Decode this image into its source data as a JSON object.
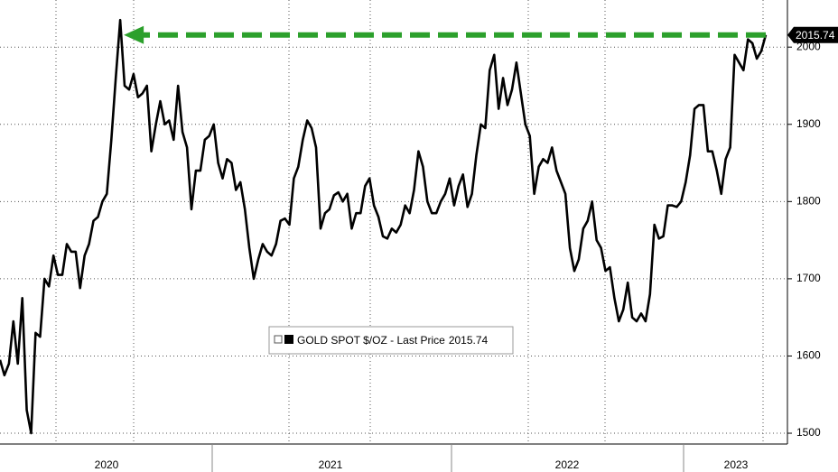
{
  "chart_data": {
    "type": "line",
    "x_labels": [
      "2020",
      "2021",
      "2022",
      "2023"
    ],
    "series": [
      {
        "name": "GOLD SPOT $/OZ - Last Price",
        "color": "#000000",
        "values": [
          1595,
          1575,
          1590,
          1645,
          1590,
          1675,
          1530,
          1500,
          1630,
          1625,
          1700,
          1690,
          1730,
          1705,
          1705,
          1745,
          1735,
          1735,
          1688,
          1730,
          1745,
          1775,
          1780,
          1800,
          1810,
          1880,
          1960,
          2035,
          1950,
          1945,
          1965,
          1935,
          1940,
          1950,
          1865,
          1900,
          1930,
          1900,
          1905,
          1880,
          1950,
          1890,
          1870,
          1790,
          1840,
          1840,
          1880,
          1885,
          1900,
          1850,
          1830,
          1855,
          1850,
          1815,
          1825,
          1790,
          1740,
          1700,
          1725,
          1745,
          1735,
          1730,
          1745,
          1775,
          1778,
          1770,
          1830,
          1845,
          1880,
          1905,
          1895,
          1870,
          1765,
          1785,
          1790,
          1808,
          1812,
          1800,
          1810,
          1765,
          1785,
          1785,
          1820,
          1830,
          1795,
          1780,
          1755,
          1752,
          1765,
          1760,
          1770,
          1795,
          1785,
          1815,
          1865,
          1845,
          1800,
          1785,
          1785,
          1800,
          1810,
          1830,
          1795,
          1820,
          1835,
          1793,
          1810,
          1860,
          1900,
          1895,
          1970,
          1990,
          1920,
          1960,
          1925,
          1945,
          1980,
          1940,
          1900,
          1885,
          1810,
          1845,
          1855,
          1850,
          1870,
          1840,
          1825,
          1810,
          1740,
          1710,
          1725,
          1765,
          1775,
          1800,
          1750,
          1740,
          1710,
          1715,
          1675,
          1645,
          1660,
          1695,
          1650,
          1645,
          1655,
          1645,
          1680,
          1770,
          1752,
          1755,
          1795,
          1795,
          1793,
          1800,
          1825,
          1860,
          1920,
          1925,
          1925,
          1865,
          1865,
          1840,
          1810,
          1855,
          1870,
          1990,
          1980,
          1970,
          2010,
          2005,
          1985,
          1995,
          2015.74
        ]
      }
    ],
    "annotation_color": "#2ca02c",
    "ylim": [
      1486,
      2061
    ],
    "yticks": [
      1500,
      1600,
      1700,
      1800,
      1900,
      2000
    ],
    "grid": true
  }
}
